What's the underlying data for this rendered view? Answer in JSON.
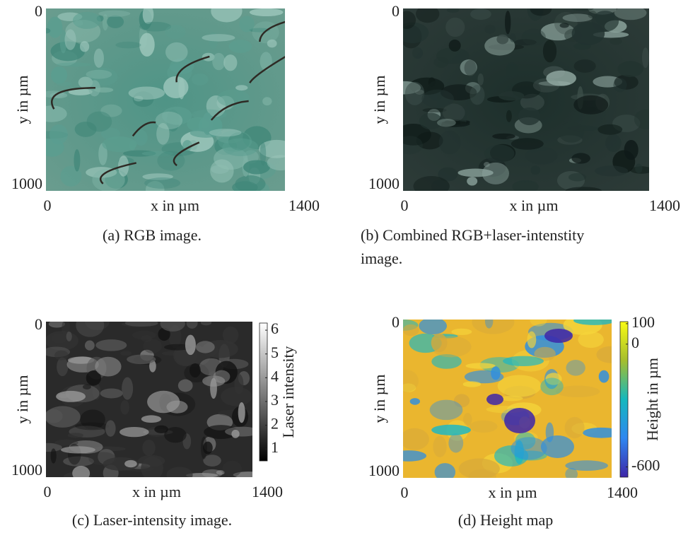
{
  "panels": [
    {
      "caption": "(a) RGB image.",
      "xlabel": "x in µm",
      "ylabel": "y in µm",
      "xlim": [
        0,
        1400
      ],
      "xticks": [
        0,
        1400
      ],
      "ylim": [
        0,
        1000
      ],
      "yticks": [
        0,
        1000
      ]
    },
    {
      "caption": "(b) Combined RGB+laser-intenstity image.",
      "xlabel": "x in µm",
      "ylabel": "y in µm",
      "xlim": [
        0,
        1400
      ],
      "xticks": [
        0,
        1400
      ],
      "ylim": [
        0,
        1000
      ],
      "yticks": [
        0,
        1000
      ]
    },
    {
      "caption": "(c) Laser-intensity image.",
      "xlabel": "x in µm",
      "ylabel": "y in µm",
      "xlim": [
        0,
        1400
      ],
      "xticks": [
        0,
        1400
      ],
      "ylim": [
        0,
        1000
      ],
      "yticks": [
        0,
        1000
      ],
      "colorbar": {
        "label": "Laser intensity",
        "clim": [
          0.5,
          6.3
        ],
        "ticks": [
          1,
          2,
          3,
          4,
          5,
          6
        ]
      }
    },
    {
      "caption": "(d) Height map",
      "xlabel": "x in µm",
      "ylabel": "y in µm",
      "xlim": [
        0,
        1400
      ],
      "xticks": [
        0,
        1400
      ],
      "ylim": [
        0,
        1000
      ],
      "yticks": [
        0,
        1000
      ],
      "colorbar": {
        "label": "Height in µm",
        "clim": [
          -650,
          110
        ],
        "ticks": [
          100,
          0,
          -600
        ]
      }
    }
  ]
}
